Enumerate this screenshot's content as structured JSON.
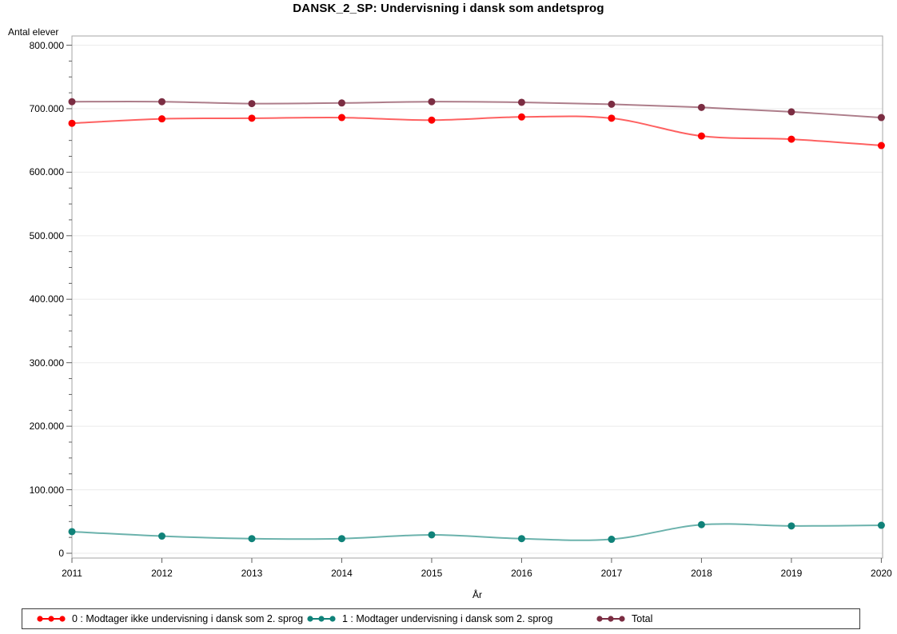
{
  "title": "DANSK_2_SP: Undervisning i dansk som andetsprog",
  "y_axis": {
    "label": "Antal elever",
    "tick_labels": [
      "0",
      "100.000",
      "200.000",
      "300.000",
      "400.000",
      "500.000",
      "600.000",
      "700.000",
      "800.000"
    ],
    "min": 0,
    "max": 800000,
    "major_step": 100000,
    "minor_step": 25000
  },
  "x_axis": {
    "label": "År",
    "tick_labels": [
      "2011",
      "2012",
      "2013",
      "2014",
      "2015",
      "2016",
      "2017",
      "2018",
      "2019",
      "2020"
    ]
  },
  "chart_data": {
    "type": "line",
    "x": [
      2011,
      2012,
      2013,
      2014,
      2015,
      2016,
      2017,
      2018,
      2019,
      2020
    ],
    "series": [
      {
        "name": "0 : Modtager ikke undervisning i dansk som 2. sprog",
        "color": "#fe0000",
        "values": [
          677000,
          684000,
          685000,
          686000,
          682000,
          687000,
          685000,
          657000,
          652000,
          642000
        ]
      },
      {
        "name": "1 : Modtager undervisning i dansk som 2. sprog",
        "color": "#108279",
        "values": [
          34000,
          27000,
          23000,
          23000,
          29000,
          23000,
          22000,
          45000,
          43000,
          44000
        ]
      },
      {
        "name": "Total",
        "color": "#7b2d42",
        "values": [
          711000,
          711000,
          708000,
          709000,
          711000,
          710000,
          707000,
          702000,
          695000,
          686000
        ]
      }
    ],
    "title": "DANSK_2_SP: Undervisning i dansk som andetsprog",
    "xlabel": "År",
    "ylabel": "Antal elever",
    "ylim": [
      0,
      800000
    ],
    "grid": "horizontal-major",
    "legend_position": "bottom"
  },
  "style": {
    "frame_color": "#a6a6a6",
    "grid_color": "#ebebeb",
    "tick_color": "#5f5f5f",
    "background": "#ffffff"
  }
}
